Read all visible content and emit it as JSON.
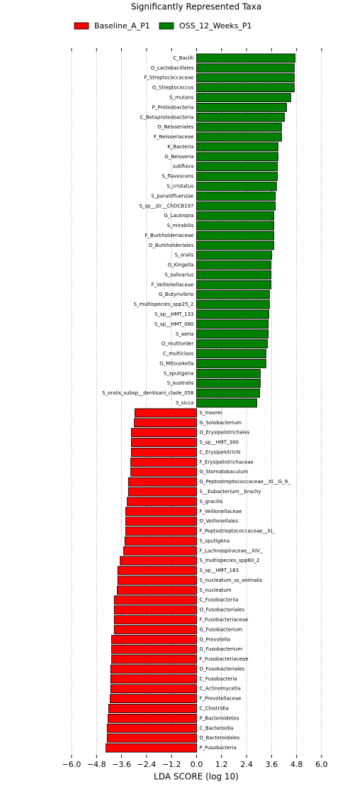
{
  "chart_data": {
    "type": "bar",
    "orientation": "horizontal",
    "title": "Significantly Represented Taxa",
    "xlabel": "LDA SCORE (log 10)",
    "categories": [
      "C_Bacilli",
      "O_Lactobacillales",
      "F_Streptococcaceae",
      "G_Streptococcus",
      "S_mutans",
      "P_Proteobacteria",
      "C_Betaproteobacteria",
      "O_Neisseriales",
      "F_Neisseriaceae",
      "K_Bacteria",
      "G_Neisseria",
      "subflava",
      "S_flavescens",
      "S_cristatus",
      "S_parainfluenzae",
      "S_sp__str__ChDCB197",
      "G_Lautropia",
      "S_mirabilis",
      "F_Burkholderiaceae",
      "O_Burkholderiales",
      "S_oralis",
      "G_Kingella",
      "S_salivarius",
      "F_Veillonellaceae",
      "G_Butyrivibrio",
      "S_multispecies_spp25_2",
      "S_sp__HMT_133",
      "S_sp__HMT_080",
      "S_aeria",
      "O_multiorder",
      "C_multiclass",
      "G_Mitsuokella",
      "S_sputigena",
      "S_australis",
      "S_oralis_subsp__dentisani_clade_058",
      "S_sicca",
      "S_moorei",
      "G_Solobacterium",
      "O_Erysipelotrichales",
      "S_sp__HMT_300",
      "C_Erysipelotrichi",
      "F_Erysipelotrichaceae",
      "G_Stomatobaculum",
      "G_Peptostreptococcaceae__XI__G_9_",
      "S__Eubacterium__brachy",
      "S_gracilis",
      "F_Veillonellaceae",
      "O_Veillonellales",
      "F_Peptostreptococcaceae__XI_",
      "S_sputigena",
      "F_Lachnospiraceae__XIV_",
      "S_multispecies_spp60_2",
      "S_sp__HMT_183",
      "S_nucleatum_ss_animalis",
      "S_nucleatum",
      "C_Fusobacteriia",
      "O_Fusobacteriales",
      "F_Fusobacteriaceae",
      "G_Fusobacterium",
      "G_Prevotella",
      "G_Fusobacterium",
      "F_Fusobacteriaceae",
      "O_Fusobacteriales",
      "C_Fusobacteria",
      "C_Actinomycetia",
      "F_Prevotellaceae",
      "C_Clostridia",
      "P_Bacteroidetes",
      "C_Bacteroidia",
      "O_Bacteroidales",
      "P_Fusobacteria"
    ],
    "series": [
      {
        "name": "Baseline_A_P1",
        "color": "#ff0000",
        "values": [
          null,
          null,
          null,
          null,
          null,
          null,
          null,
          null,
          null,
          null,
          null,
          null,
          null,
          null,
          null,
          null,
          null,
          null,
          null,
          null,
          null,
          null,
          null,
          null,
          null,
          null,
          null,
          null,
          null,
          null,
          null,
          null,
          null,
          null,
          null,
          null,
          -2.96,
          -2.99,
          -3.13,
          -3.13,
          -3.13,
          -3.16,
          -3.16,
          -3.27,
          -3.27,
          -3.33,
          -3.4,
          -3.4,
          -3.4,
          -3.44,
          -3.5,
          -3.67,
          -3.78,
          -3.78,
          -3.81,
          -3.95,
          -3.95,
          -3.95,
          -3.95,
          -4.08,
          -4.08,
          -4.08,
          -4.12,
          -4.12,
          -4.12,
          -4.15,
          -4.22,
          -4.25,
          -4.29,
          -4.29,
          -4.35
        ]
      },
      {
        "name": "OSS_12_Weeks_P1",
        "color": "#008000",
        "values": [
          4.73,
          4.69,
          4.69,
          4.69,
          4.52,
          4.32,
          4.22,
          4.08,
          4.08,
          3.91,
          3.91,
          3.88,
          3.88,
          3.84,
          3.78,
          3.78,
          3.71,
          3.71,
          3.71,
          3.71,
          3.61,
          3.57,
          3.57,
          3.57,
          3.5,
          3.5,
          3.47,
          3.44,
          3.44,
          3.4,
          3.33,
          3.33,
          3.06,
          3.06,
          3.03,
          2.89,
          null,
          null,
          null,
          null,
          null,
          null,
          null,
          null,
          null,
          null,
          null,
          null,
          null,
          null,
          null,
          null,
          null,
          null,
          null,
          null,
          null,
          null,
          null,
          null,
          null,
          null,
          null,
          null,
          null,
          null,
          null,
          null,
          null,
          null,
          null
        ]
      }
    ],
    "xlim": [
      -6,
      6
    ],
    "xticks": [
      {
        "value": -6,
        "label": "−6.0"
      },
      {
        "value": -4.8,
        "label": "−4.8"
      },
      {
        "value": -3.6,
        "label": "−3.6"
      },
      {
        "value": -2.4,
        "label": "−2.4"
      },
      {
        "value": -1.2,
        "label": "−1.2"
      },
      {
        "value": 0,
        "label": "0.0"
      },
      {
        "value": 1.2,
        "label": "1.2"
      },
      {
        "value": 2.4,
        "label": "2.4"
      },
      {
        "value": 3.6,
        "label": "3.6"
      },
      {
        "value": 4.8,
        "label": "4.8"
      },
      {
        "value": 6,
        "label": "6.0"
      }
    ],
    "grid": true
  }
}
